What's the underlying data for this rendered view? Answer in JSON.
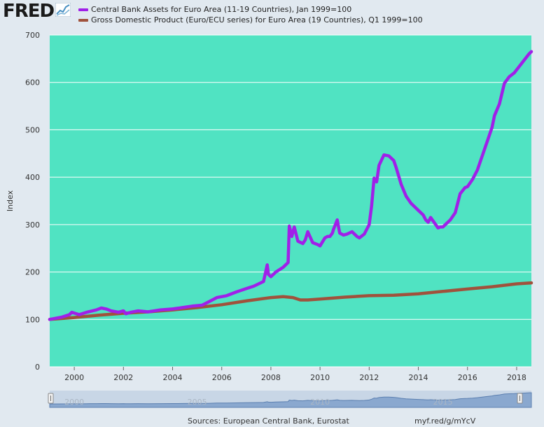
{
  "header": {
    "logo_text": "FRED",
    "logo_icon": "line-graph-icon"
  },
  "colors": {
    "plot_bg": "#50e3c2",
    "assets_line": "#a020e8",
    "gdp_line": "#a0523c",
    "page_bg": "#e1e9f0"
  },
  "chart_data": {
    "type": "line",
    "xlabel": "",
    "ylabel": "Index",
    "xlim": [
      1999.0,
      2018.6
    ],
    "ylim": [
      0,
      700
    ],
    "grid": true,
    "legend_position": "top-left",
    "x_ticks": [
      "2000",
      "2002",
      "2004",
      "2006",
      "2008",
      "2010",
      "2012",
      "2014",
      "2016",
      "2018"
    ],
    "y_ticks": [
      "0",
      "100",
      "200",
      "300",
      "400",
      "500",
      "600",
      "700"
    ],
    "series": [
      {
        "name": "Central Bank Assets for Euro Area (11-19 Countries), Jan 1999=100",
        "color": "#a020e8",
        "x": [
          1999.0,
          1999.5,
          1999.8,
          1999.9,
          2000.2,
          2000.5,
          2000.9,
          2001.1,
          2001.3,
          2001.5,
          2001.8,
          2002.0,
          2002.1,
          2002.3,
          2002.6,
          2003.0,
          2003.5,
          2004.0,
          2004.4,
          2004.8,
          2005.2,
          2005.5,
          2005.8,
          2006.2,
          2006.6,
          2007.0,
          2007.3,
          2007.5,
          2007.7,
          2007.85,
          2007.9,
          2008.0,
          2008.2,
          2008.5,
          2008.7,
          2008.75,
          2008.85,
          2008.95,
          2009.1,
          2009.3,
          2009.4,
          2009.5,
          2009.7,
          2009.9,
          2010.0,
          2010.2,
          2010.3,
          2010.4,
          2010.5,
          2010.55,
          2010.7,
          2010.8,
          2010.95,
          2011.1,
          2011.3,
          2011.5,
          2011.6,
          2011.8,
          2011.9,
          2012.0,
          2012.1,
          2012.2,
          2012.3,
          2012.4,
          2012.6,
          2012.8,
          2013.0,
          2013.1,
          2013.3,
          2013.5,
          2013.7,
          2014.0,
          2014.2,
          2014.3,
          2014.4,
          2014.5,
          2014.8,
          2014.9,
          2015.0,
          2015.3,
          2015.5,
          2015.7,
          2015.9,
          2016.0,
          2016.2,
          2016.4,
          2016.6,
          2016.8,
          2017.0,
          2017.1,
          2017.3,
          2017.5,
          2017.7,
          2017.9,
          2018.2,
          2018.5,
          2018.6
        ],
        "values": [
          100,
          105,
          110,
          115,
          110,
          115,
          120,
          124,
          122,
          118,
          115,
          118,
          112,
          115,
          118,
          116,
          120,
          122,
          125,
          128,
          130,
          138,
          146,
          150,
          158,
          165,
          170,
          175,
          180,
          215,
          195,
          190,
          200,
          210,
          220,
          297,
          275,
          295,
          265,
          260,
          268,
          285,
          262,
          258,
          255,
          272,
          275,
          275,
          282,
          290,
          310,
          282,
          278,
          280,
          285,
          275,
          272,
          280,
          290,
          300,
          340,
          398,
          390,
          425,
          447,
          445,
          435,
          420,
          385,
          360,
          345,
          330,
          320,
          310,
          305,
          315,
          293,
          295,
          295,
          310,
          325,
          365,
          378,
          380,
          395,
          415,
          445,
          475,
          505,
          530,
          555,
          598,
          612,
          620,
          640,
          660,
          665
        ]
      },
      {
        "name": "Gross Domestic Product (Euro/ECU series) for Euro Area (19 Countries), Q1 1999=100",
        "color": "#a0523c",
        "x": [
          1999.0,
          2000.0,
          2001.0,
          2002.0,
          2003.0,
          2004.0,
          2005.0,
          2006.0,
          2007.0,
          2008.0,
          2008.5,
          2008.9,
          2009.2,
          2009.5,
          2010.0,
          2011.0,
          2012.0,
          2013.0,
          2014.0,
          2015.0,
          2016.0,
          2017.0,
          2018.0,
          2018.6
        ],
        "values": [
          100,
          104,
          109,
          113,
          116,
          120,
          125,
          131,
          139,
          146,
          148,
          146,
          141,
          141,
          143,
          147,
          150,
          151,
          154,
          159,
          164,
          169,
          175,
          177
        ]
      }
    ]
  },
  "navigator": {
    "tick_labels": [
      "2000",
      "2005",
      "2010",
      "2015"
    ]
  },
  "footer": {
    "sources": "Sources: European Central Bank, Eurostat",
    "link": "myf.red/g/mYcV"
  }
}
